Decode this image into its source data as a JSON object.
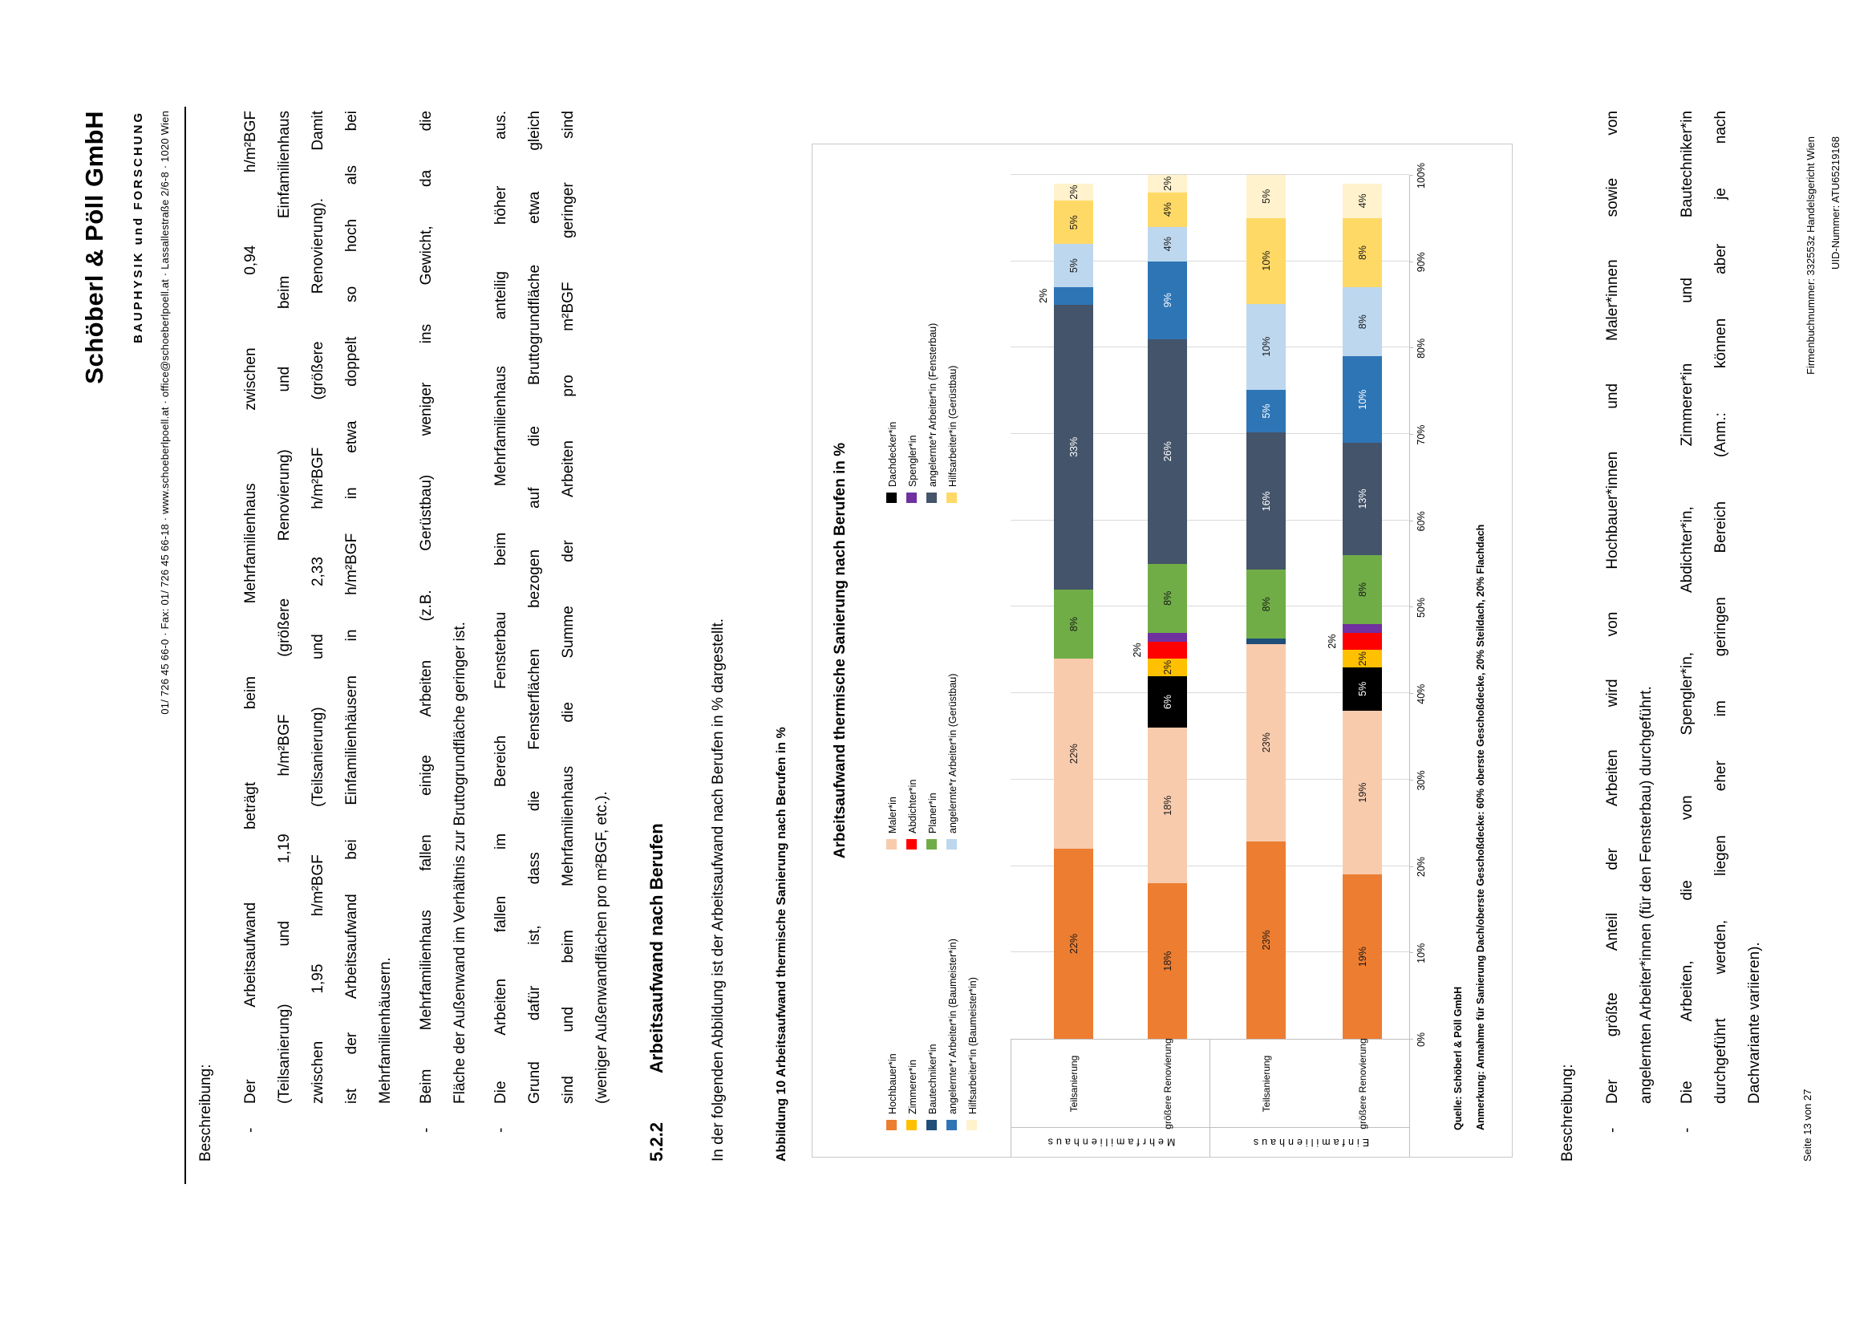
{
  "header": {
    "logo": "Schöberl & Pöll GmbH",
    "tagline": "BAUPHYSIK und FORSCHUNG",
    "contact": "01/ 726 45 66-0 · Fax: 01/ 726 45 66-18 · www.schoeberlpoell.at · office@schoeberlpoell.at · Lassallestraße 2/6-8 · 1020 Wien"
  },
  "description_top": {
    "heading": "Beschreibung:",
    "bullets": [
      {
        "lines": [
          "Der Arbeitsaufwand beträgt beim Mehrfamilienhaus zwischen 0,94 h/m²BGF",
          "(Teilsanierung) und 1,19 h/m²BGF (größere Renovierung) und beim Einfamilienhaus",
          "zwischen 1,95 h/m²BGF (Teilsanierung) und 2,33 h/m²BGF (größere Renovierung). Damit",
          "ist der Arbeitsaufwand bei Einfamilienhäusern in h/m²BGF in etwa doppelt so hoch als bei",
          "Mehrfamilienhäusern."
        ]
      },
      {
        "lines": [
          "Beim Mehrfamilienhaus fallen einige Arbeiten (z.B. Gerüstbau) weniger ins Gewicht, da die",
          "Fläche der Außenwand im Verhältnis zur Bruttogrundfläche geringer ist."
        ]
      },
      {
        "lines": [
          "Die Arbeiten fallen im Bereich Fensterbau beim Mehrfamilienhaus anteilig höher aus.",
          "Grund dafür ist, dass die Fensterflächen bezogen auf die Bruttogrundfläche etwa gleich",
          "sind und beim Mehrfamilienhaus die Summe der Arbeiten pro m²BGF geringer sind",
          "(weniger Außenwandflächen pro m²BGF, etc.)."
        ]
      }
    ]
  },
  "section": {
    "number": "5.2.2",
    "title": "Arbeitsaufwand nach Berufen"
  },
  "intro_text": "In der folgenden Abbildung ist der Arbeitsaufwand nach Berufen in % dargestellt.",
  "figure_caption": "Abbildung 10 Arbeitsaufwand thermische Sanierung nach Berufen in %",
  "chart_data": {
    "type": "bar",
    "subtype": "stacked-horizontal-percent",
    "title": "Arbeitsaufwand thermische Sanierung nach Berufen in %",
    "xlim": [
      0,
      100
    ],
    "x_ticks": [
      "0%",
      "10%",
      "20%",
      "30%",
      "40%",
      "50%",
      "60%",
      "70%",
      "80%",
      "90%",
      "100%"
    ],
    "legend_columns": [
      [
        {
          "label": "Hochbauer*in",
          "color": "#ED7D31"
        },
        {
          "label": "Zimmerer*in",
          "color": "#FFC000"
        },
        {
          "label": "Bautechniker*in",
          "color": "#1F4E79"
        },
        {
          "label": "angelernte*r Arbeiter*in (Baumeister*in)",
          "color": "#2E75B6"
        },
        {
          "label": "Hilfsarbeiter*in (Baumeister*in)",
          "color": "#FFF2CC"
        }
      ],
      [
        {
          "label": "Maler*in",
          "color": "#F8CBAD"
        },
        {
          "label": "Abdichter*in",
          "color": "#FF0000"
        },
        {
          "label": "Planer*in",
          "color": "#70AD47"
        },
        {
          "label": "angelernte*r Arbeiter*in (Gerüstbau)",
          "color": "#BDD7EE"
        }
      ],
      [
        {
          "label": "Dachdecker*in",
          "color": "#000000"
        },
        {
          "label": "Spengler*in",
          "color": "#7030A0"
        },
        {
          "label": "angelernte*r Arbeiter*in (Fensterbau)",
          "color": "#44546A"
        },
        {
          "label": "Hilfsarbeiter*in (Gerüstbau)",
          "color": "#FFD966"
        }
      ]
    ],
    "groups": [
      {
        "label": "Mehrfamilienhaus",
        "bars": [
          {
            "label": "Teilsanierung",
            "segments": [
              {
                "name": "Hochbauer*in",
                "value": 22,
                "color": "#ED7D31",
                "label": "22%"
              },
              {
                "name": "Maler*in",
                "value": 22,
                "color": "#F8CBAD",
                "label": "22%"
              },
              {
                "name": "Planer*in",
                "value": 8,
                "color": "#70AD47",
                "label": "8%"
              },
              {
                "name": "angelernte*r Arbeiter*in (Fensterbau)",
                "value": 33,
                "color": "#44546A",
                "label": "33%",
                "light": true
              },
              {
                "name": "angelernte*r Arbeiter*in (Baumeister*in)",
                "value": 2,
                "color": "#2E75B6",
                "label": null
              },
              {
                "name": "angelernte*r Arbeiter*in (Gerüstbau)",
                "value": 5,
                "color": "#BDD7EE",
                "label": "5%"
              },
              {
                "name": "Hilfsarbeiter*in (Gerüstbau)",
                "value": 5,
                "color": "#FFD966",
                "label": "5%"
              },
              {
                "name": "Hilfsarbeiter*in (Baumeister*in)",
                "value": 2,
                "color": "#FFF2CC",
                "label": "2%"
              }
            ],
            "floating": [
              {
                "pos": 86,
                "text": "2%"
              }
            ]
          },
          {
            "label": "größere Renovierung",
            "segments": [
              {
                "name": "Hochbauer*in",
                "value": 18,
                "color": "#ED7D31",
                "label": "18%"
              },
              {
                "name": "Maler*in",
                "value": 18,
                "color": "#F8CBAD",
                "label": "18%"
              },
              {
                "name": "Dachdecker*in",
                "value": 6,
                "color": "#000000",
                "label": "6%",
                "light": true
              },
              {
                "name": "Zimmerer*in",
                "value": 2,
                "color": "#FFC000",
                "label": "2%"
              },
              {
                "name": "Abdichter*in",
                "value": 2,
                "color": "#FF0000",
                "label": null
              },
              {
                "name": "Spengler*in",
                "value": 1,
                "color": "#7030A0",
                "label": null
              },
              {
                "name": "Planer*in",
                "value": 8,
                "color": "#70AD47",
                "label": "8%"
              },
              {
                "name": "angelernte*r Arbeiter*in (Fensterbau)",
                "value": 26,
                "color": "#44546A",
                "label": "26%",
                "light": true
              },
              {
                "name": "angelernte*r Arbeiter*in (Baumeister*in)",
                "value": 9,
                "color": "#2E75B6",
                "label": "9%",
                "light": true
              },
              {
                "name": "angelernte*r Arbeiter*in (Gerüstbau)",
                "value": 4,
                "color": "#BDD7EE",
                "label": "4%"
              },
              {
                "name": "Hilfsarbeiter*in (Gerüstbau)",
                "value": 4,
                "color": "#FFD966",
                "label": "4%"
              },
              {
                "name": "Hilfsarbeiter*in (Baumeister*in)",
                "value": 2,
                "color": "#FFF2CC",
                "label": "2%"
              }
            ],
            "floating": [
              {
                "pos": 45,
                "text": "2%"
              }
            ]
          }
        ]
      },
      {
        "label": "Einfamilienhaus",
        "bars": [
          {
            "label": "Teilsanierung",
            "segments": [
              {
                "name": "Hochbauer*in",
                "value": 23,
                "color": "#ED7D31",
                "label": "23%"
              },
              {
                "name": "Maler*in",
                "value": 23,
                "color": "#F8CBAD",
                "label": "23%"
              },
              {
                "name": "Bautechniker*in",
                "value": 0.6,
                "color": "#1F4E79",
                "label": null
              },
              {
                "name": "Planer*in",
                "value": 8,
                "color": "#70AD47",
                "label": "8%"
              },
              {
                "name": "angelernte*r Arbeiter*in (Fensterbau)",
                "value": 16,
                "color": "#44546A",
                "label": "16%",
                "light": true
              },
              {
                "name": "angelernte*r Arbeiter*in (Baumeister*in)",
                "value": 5,
                "color": "#2E75B6",
                "label": "5%",
                "light": true
              },
              {
                "name": "angelernte*r Arbeiter*in (Gerüstbau)",
                "value": 10,
                "color": "#BDD7EE",
                "label": "10%"
              },
              {
                "name": "Hilfsarbeiter*in (Gerüstbau)",
                "value": 10,
                "color": "#FFD966",
                "label": "10%"
              },
              {
                "name": "Hilfsarbeiter*in (Baumeister*in)",
                "value": 5,
                "color": "#FFF2CC",
                "label": "5%"
              }
            ],
            "floating": []
          },
          {
            "label": "größere Renovierung",
            "segments": [
              {
                "name": "Hochbauer*in",
                "value": 19,
                "color": "#ED7D31",
                "label": "19%"
              },
              {
                "name": "Maler*in",
                "value": 19,
                "color": "#F8CBAD",
                "label": "19%"
              },
              {
                "name": "Dachdecker*in",
                "value": 5,
                "color": "#000000",
                "label": "5%",
                "light": true
              },
              {
                "name": "Zimmerer*in",
                "value": 2,
                "color": "#FFC000",
                "label": "2%"
              },
              {
                "name": "Abdichter*in",
                "value": 2,
                "color": "#FF0000",
                "label": null
              },
              {
                "name": "Spengler*in",
                "value": 1,
                "color": "#7030A0",
                "label": null
              },
              {
                "name": "Planer*in",
                "value": 8,
                "color": "#70AD47",
                "label": "8%"
              },
              {
                "name": "angelernte*r Arbeiter*in (Fensterbau)",
                "value": 13,
                "color": "#44546A",
                "label": "13%",
                "light": true
              },
              {
                "name": "angelernte*r Arbeiter*in (Baumeister*in)",
                "value": 10,
                "color": "#2E75B6",
                "label": "10%",
                "light": true
              },
              {
                "name": "angelernte*r Arbeiter*in (Gerüstbau)",
                "value": 8,
                "color": "#BDD7EE",
                "label": "8%"
              },
              {
                "name": "Hilfsarbeiter*in (Gerüstbau)",
                "value": 8,
                "color": "#FFD966",
                "label": "8%"
              },
              {
                "name": "Hilfsarbeiter*in (Baumeister*in)",
                "value": 4,
                "color": "#FFF2CC",
                "label": "4%"
              }
            ],
            "floating": [
              {
                "pos": 46,
                "text": "2%"
              }
            ]
          }
        ]
      }
    ],
    "source": "Quelle: Schöberl & Pöll GmbH",
    "note": "Anmerkung: Annahme für Sanierung Dach/oberste Geschoßdecke: 60% oberste Geschoßdecke, 20% Steildach, 20% Flachdach"
  },
  "description_bottom": {
    "heading": "Beschreibung:",
    "bullets": [
      {
        "lines": [
          "Der größte Anteil der Arbeiten wird von Hochbauer*innen und Maler*innen sowie von",
          "angelernten Arbeiter*innen (für den Fensterbau) durchgeführt."
        ]
      },
      {
        "lines": [
          "Die Arbeiten, die von Spengler*in, Abdichter*in, Zimmerer*in und Bautechniker*in",
          "durchgeführt werden, liegen eher im geringen Bereich (Anm.: können aber je nach",
          "Dachvariante variieren)."
        ]
      }
    ]
  },
  "footer": {
    "page": "Seite 13 von 27",
    "register": "Firmenbuchnummer: 332553z Handelsgericht Wien",
    "uid": "UID-Nummer: ATU65219168"
  }
}
